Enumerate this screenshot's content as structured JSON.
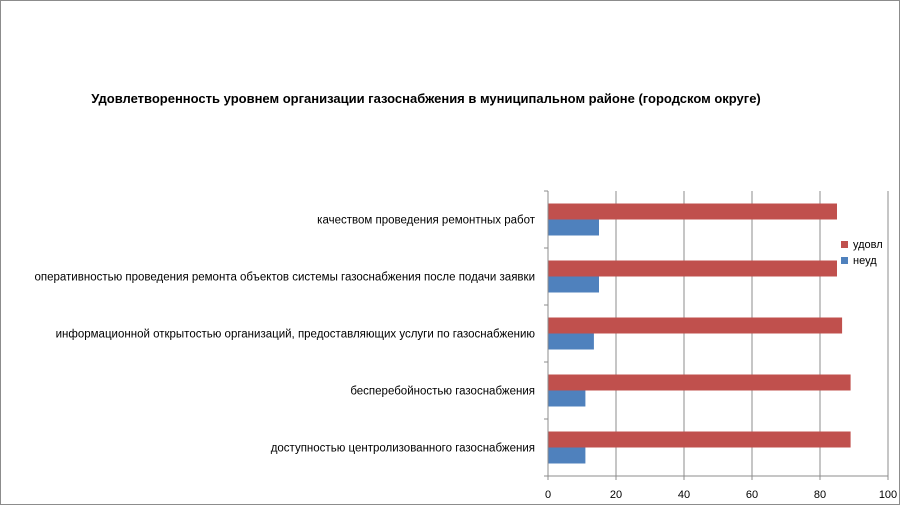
{
  "chart_data": {
    "type": "bar",
    "orientation": "horizontal",
    "title": "Удовлетворенность уровнем организации газоснабжения в муниципальном районе (городском округе)",
    "categories": [
      "качеством проведения ремонтных работ",
      "оперативностью проведения ремонта объектов системы газоснабжения после подачи заявки",
      "информационной открытостью организаций, предоставляющих услуги по газоснабжению",
      "бесперебойностью газоснабжения",
      "доступностью центролизованного газоснабжения"
    ],
    "series": [
      {
        "name": "удовл",
        "color": "#c0504d",
        "values": [
          85,
          85,
          86.5,
          89,
          89
        ]
      },
      {
        "name": "неуд",
        "color": "#4f81bd",
        "values": [
          15,
          15,
          13.5,
          11,
          11
        ]
      }
    ],
    "xlim": [
      0,
      100
    ],
    "xticks": [
      "0",
      "20",
      "40",
      "60",
      "80",
      "100"
    ],
    "grid": true,
    "legend_position": "right"
  }
}
